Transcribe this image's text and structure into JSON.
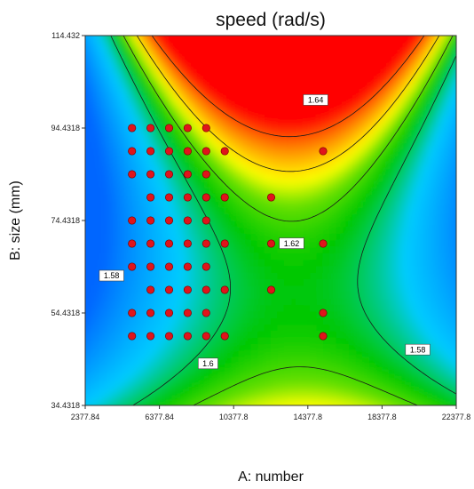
{
  "chart_data": {
    "type": "heatmap",
    "title": "speed (rad/s)",
    "xlabel": "A: number",
    "ylabel": "B: size (mm)",
    "xlim": [
      2377.84,
      22377.8
    ],
    "ylim": [
      34.4318,
      114.432
    ],
    "x_ticks": [
      "2377.84",
      "6377.84",
      "10377.8",
      "14377.8",
      "18377.8",
      "22377.8"
    ],
    "y_ticks": [
      "34.4318",
      "54.4318",
      "74.4318",
      "94.4318",
      "114.432"
    ],
    "contours": [
      {
        "level": "1.58",
        "label_position": [
          3800,
          62.5
        ]
      },
      {
        "level": "1.58",
        "label_position": [
          20300,
          46.5
        ]
      },
      {
        "level": "1.6",
        "label_position": [
          9000,
          43.5
        ]
      },
      {
        "level": "1.62",
        "label_position": [
          13500,
          69.5
        ]
      },
      {
        "level": "1.64",
        "label_position": [
          14800,
          100.5
        ]
      }
    ],
    "design_points": [
      [
        4900,
        94.43
      ],
      [
        5900,
        94.43
      ],
      [
        6900,
        94.43
      ],
      [
        7900,
        94.43
      ],
      [
        8900,
        94.43
      ],
      [
        4900,
        89.43
      ],
      [
        5900,
        89.43
      ],
      [
        6900,
        89.43
      ],
      [
        7900,
        89.43
      ],
      [
        8900,
        89.43
      ],
      [
        9900,
        89.43
      ],
      [
        15200,
        89.43
      ],
      [
        4900,
        84.43
      ],
      [
        5900,
        84.43
      ],
      [
        6900,
        84.43
      ],
      [
        7900,
        84.43
      ],
      [
        8900,
        84.43
      ],
      [
        5900,
        79.43
      ],
      [
        6900,
        79.43
      ],
      [
        7900,
        79.43
      ],
      [
        8900,
        79.43
      ],
      [
        9900,
        79.43
      ],
      [
        12400,
        79.43
      ],
      [
        4900,
        74.43
      ],
      [
        5900,
        74.43
      ],
      [
        6900,
        74.43
      ],
      [
        7900,
        74.43
      ],
      [
        8900,
        74.43
      ],
      [
        4900,
        69.43
      ],
      [
        5900,
        69.43
      ],
      [
        6900,
        69.43
      ],
      [
        7900,
        69.43
      ],
      [
        8900,
        69.43
      ],
      [
        9900,
        69.43
      ],
      [
        12400,
        69.43
      ],
      [
        15200,
        69.43
      ],
      [
        4900,
        64.43
      ],
      [
        5900,
        64.43
      ],
      [
        6900,
        64.43
      ],
      [
        7900,
        64.43
      ],
      [
        8900,
        64.43
      ],
      [
        5900,
        59.43
      ],
      [
        6900,
        59.43
      ],
      [
        7900,
        59.43
      ],
      [
        8900,
        59.43
      ],
      [
        9900,
        59.43
      ],
      [
        12400,
        59.43
      ],
      [
        4900,
        54.43
      ],
      [
        5900,
        54.43
      ],
      [
        6900,
        54.43
      ],
      [
        7900,
        54.43
      ],
      [
        8900,
        54.43
      ],
      [
        15200,
        54.43
      ],
      [
        4900,
        49.43
      ],
      [
        5900,
        49.43
      ],
      [
        6900,
        49.43
      ],
      [
        7900,
        49.43
      ],
      [
        8900,
        49.43
      ],
      [
        9900,
        49.43
      ],
      [
        15200,
        49.43
      ]
    ],
    "point_color": "#e0141b",
    "colormap": [
      "#0066ff",
      "#00ccff",
      "#00c800",
      "#66e000",
      "#ffff00",
      "#ff8800",
      "#ff0000"
    ]
  }
}
